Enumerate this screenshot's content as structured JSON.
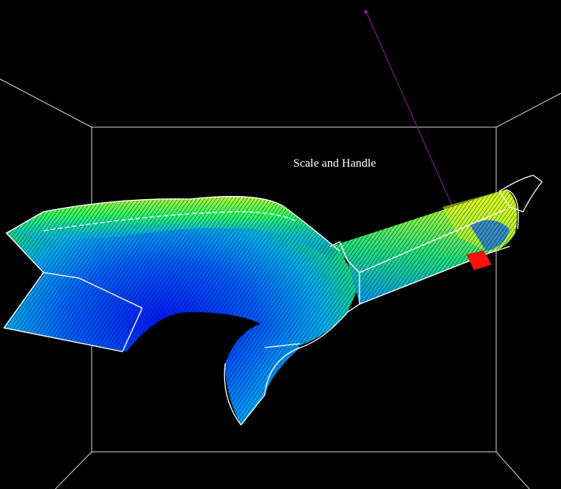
{
  "viewport": {
    "label": "Scale and Handle",
    "background_color": "#000000",
    "frame_color": "#d0d0d0",
    "outline_color": "#ffffff",
    "colormap": [
      "#0018ff",
      "#00a0ff",
      "#00e8e0",
      "#30ff60",
      "#e8ff20",
      "#ff3000"
    ],
    "probe_color": "#ff1010",
    "probe_line_color": "#7a1a7a"
  }
}
